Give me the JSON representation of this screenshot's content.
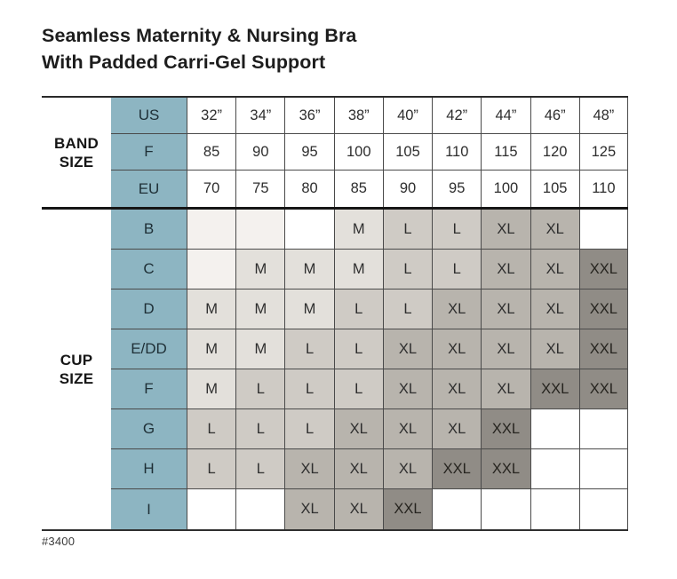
{
  "title": {
    "line1": "Seamless Maternity & Nursing Bra",
    "line2": "With Padded Carri-Gel Support"
  },
  "footer": {
    "item_number": "#3400"
  },
  "colors": {
    "header_teal": "#8db5c2",
    "shade_tint": "#f4f1ee",
    "shade_m": "#e3e0db",
    "shade_l": "#cfcbc5",
    "shade_xl": "#b8b4ad",
    "shade_xxl": "#908c86",
    "grid_line": "#4a4a4a",
    "heavy_line": "#161616"
  },
  "band_section": {
    "label": "BAND SIZE",
    "rows": [
      {
        "header": "US",
        "values": [
          "32”",
          "34”",
          "36”",
          "38”",
          "40”",
          "42”",
          "44”",
          "46”",
          "48”"
        ]
      },
      {
        "header": "F",
        "values": [
          "85",
          "90",
          "95",
          "100",
          "105",
          "110",
          "115",
          "120",
          "125"
        ]
      },
      {
        "header": "EU",
        "values": [
          "70",
          "75",
          "80",
          "85",
          "90",
          "95",
          "100",
          "105",
          "110"
        ]
      }
    ]
  },
  "cup_section": {
    "label": "CUP SIZE",
    "rows": [
      {
        "header": "B",
        "cells": [
          {
            "v": "",
            "s": "tint"
          },
          {
            "v": "",
            "s": "tint"
          },
          {
            "v": "",
            "s": "white"
          },
          {
            "v": "M",
            "s": "m"
          },
          {
            "v": "L",
            "s": "l"
          },
          {
            "v": "L",
            "s": "l"
          },
          {
            "v": "XL",
            "s": "xl"
          },
          {
            "v": "XL",
            "s": "xl"
          },
          {
            "v": "",
            "s": "white"
          }
        ]
      },
      {
        "header": "C",
        "cells": [
          {
            "v": "",
            "s": "tint"
          },
          {
            "v": "M",
            "s": "m"
          },
          {
            "v": "M",
            "s": "m"
          },
          {
            "v": "M",
            "s": "m"
          },
          {
            "v": "L",
            "s": "l"
          },
          {
            "v": "L",
            "s": "l"
          },
          {
            "v": "XL",
            "s": "xl"
          },
          {
            "v": "XL",
            "s": "xl"
          },
          {
            "v": "XXL",
            "s": "xxl"
          }
        ]
      },
      {
        "header": "D",
        "cells": [
          {
            "v": "M",
            "s": "m"
          },
          {
            "v": "M",
            "s": "m"
          },
          {
            "v": "M",
            "s": "m"
          },
          {
            "v": "L",
            "s": "l"
          },
          {
            "v": "L",
            "s": "l"
          },
          {
            "v": "XL",
            "s": "xl"
          },
          {
            "v": "XL",
            "s": "xl"
          },
          {
            "v": "XL",
            "s": "xl"
          },
          {
            "v": "XXL",
            "s": "xxl"
          }
        ]
      },
      {
        "header": "E/DD",
        "cells": [
          {
            "v": "M",
            "s": "m"
          },
          {
            "v": "M",
            "s": "m"
          },
          {
            "v": "L",
            "s": "l"
          },
          {
            "v": "L",
            "s": "l"
          },
          {
            "v": "XL",
            "s": "xl"
          },
          {
            "v": "XL",
            "s": "xl"
          },
          {
            "v": "XL",
            "s": "xl"
          },
          {
            "v": "XL",
            "s": "xl"
          },
          {
            "v": "XXL",
            "s": "xxl"
          }
        ]
      },
      {
        "header": "F",
        "cells": [
          {
            "v": "M",
            "s": "m"
          },
          {
            "v": "L",
            "s": "l"
          },
          {
            "v": "L",
            "s": "l"
          },
          {
            "v": "L",
            "s": "l"
          },
          {
            "v": "XL",
            "s": "xl"
          },
          {
            "v": "XL",
            "s": "xl"
          },
          {
            "v": "XL",
            "s": "xl"
          },
          {
            "v": "XXL",
            "s": "xxl"
          },
          {
            "v": "XXL",
            "s": "xxl"
          }
        ]
      },
      {
        "header": "G",
        "cells": [
          {
            "v": "L",
            "s": "l"
          },
          {
            "v": "L",
            "s": "l"
          },
          {
            "v": "L",
            "s": "l"
          },
          {
            "v": "XL",
            "s": "xl"
          },
          {
            "v": "XL",
            "s": "xl"
          },
          {
            "v": "XL",
            "s": "xl"
          },
          {
            "v": "XXL",
            "s": "xxl"
          },
          {
            "v": "",
            "s": "white"
          },
          {
            "v": "",
            "s": "white"
          }
        ]
      },
      {
        "header": "H",
        "cells": [
          {
            "v": "L",
            "s": "l"
          },
          {
            "v": "L",
            "s": "l"
          },
          {
            "v": "XL",
            "s": "xl"
          },
          {
            "v": "XL",
            "s": "xl"
          },
          {
            "v": "XL",
            "s": "xl"
          },
          {
            "v": "XXL",
            "s": "xxl"
          },
          {
            "v": "XXL",
            "s": "xxl"
          },
          {
            "v": "",
            "s": "white"
          },
          {
            "v": "",
            "s": "white"
          }
        ]
      },
      {
        "header": "I",
        "cells": [
          {
            "v": "",
            "s": "white"
          },
          {
            "v": "",
            "s": "white"
          },
          {
            "v": "XL",
            "s": "xl"
          },
          {
            "v": "XL",
            "s": "xl"
          },
          {
            "v": "XXL",
            "s": "xxl"
          },
          {
            "v": "",
            "s": "white"
          },
          {
            "v": "",
            "s": "white"
          },
          {
            "v": "",
            "s": "white"
          },
          {
            "v": "",
            "s": "white"
          }
        ]
      }
    ]
  },
  "chart_data": {
    "type": "table",
    "title": "Seamless Maternity & Nursing Bra With Padded Carri-Gel Support",
    "band_size": {
      "US": [
        "32”",
        "34”",
        "36”",
        "38”",
        "40”",
        "42”",
        "44”",
        "46”",
        "48”"
      ],
      "F": [
        85,
        90,
        95,
        100,
        105,
        110,
        115,
        120,
        125
      ],
      "EU": [
        70,
        75,
        80,
        85,
        90,
        95,
        100,
        105,
        110
      ]
    },
    "cup_size_rows": {
      "B": [
        "",
        "",
        "",
        "M",
        "L",
        "L",
        "XL",
        "XL",
        ""
      ],
      "C": [
        "",
        "M",
        "M",
        "M",
        "L",
        "L",
        "XL",
        "XL",
        "XXL"
      ],
      "D": [
        "M",
        "M",
        "M",
        "L",
        "L",
        "XL",
        "XL",
        "XL",
        "XXL"
      ],
      "E/DD": [
        "M",
        "M",
        "L",
        "L",
        "XL",
        "XL",
        "XL",
        "XL",
        "XXL"
      ],
      "F": [
        "M",
        "L",
        "L",
        "L",
        "XL",
        "XL",
        "XL",
        "XXL",
        "XXL"
      ],
      "G": [
        "L",
        "L",
        "L",
        "XL",
        "XL",
        "XL",
        "XXL",
        "",
        ""
      ],
      "H": [
        "L",
        "L",
        "XL",
        "XL",
        "XL",
        "XXL",
        "XXL",
        "",
        ""
      ],
      "I": [
        "",
        "",
        "XL",
        "XL",
        "XXL",
        "",
        "",
        "",
        ""
      ]
    },
    "notes": "Cell shading darkens with garment size: M lightest gray, XXL darkest gray.",
    "item_number": "#3400"
  }
}
